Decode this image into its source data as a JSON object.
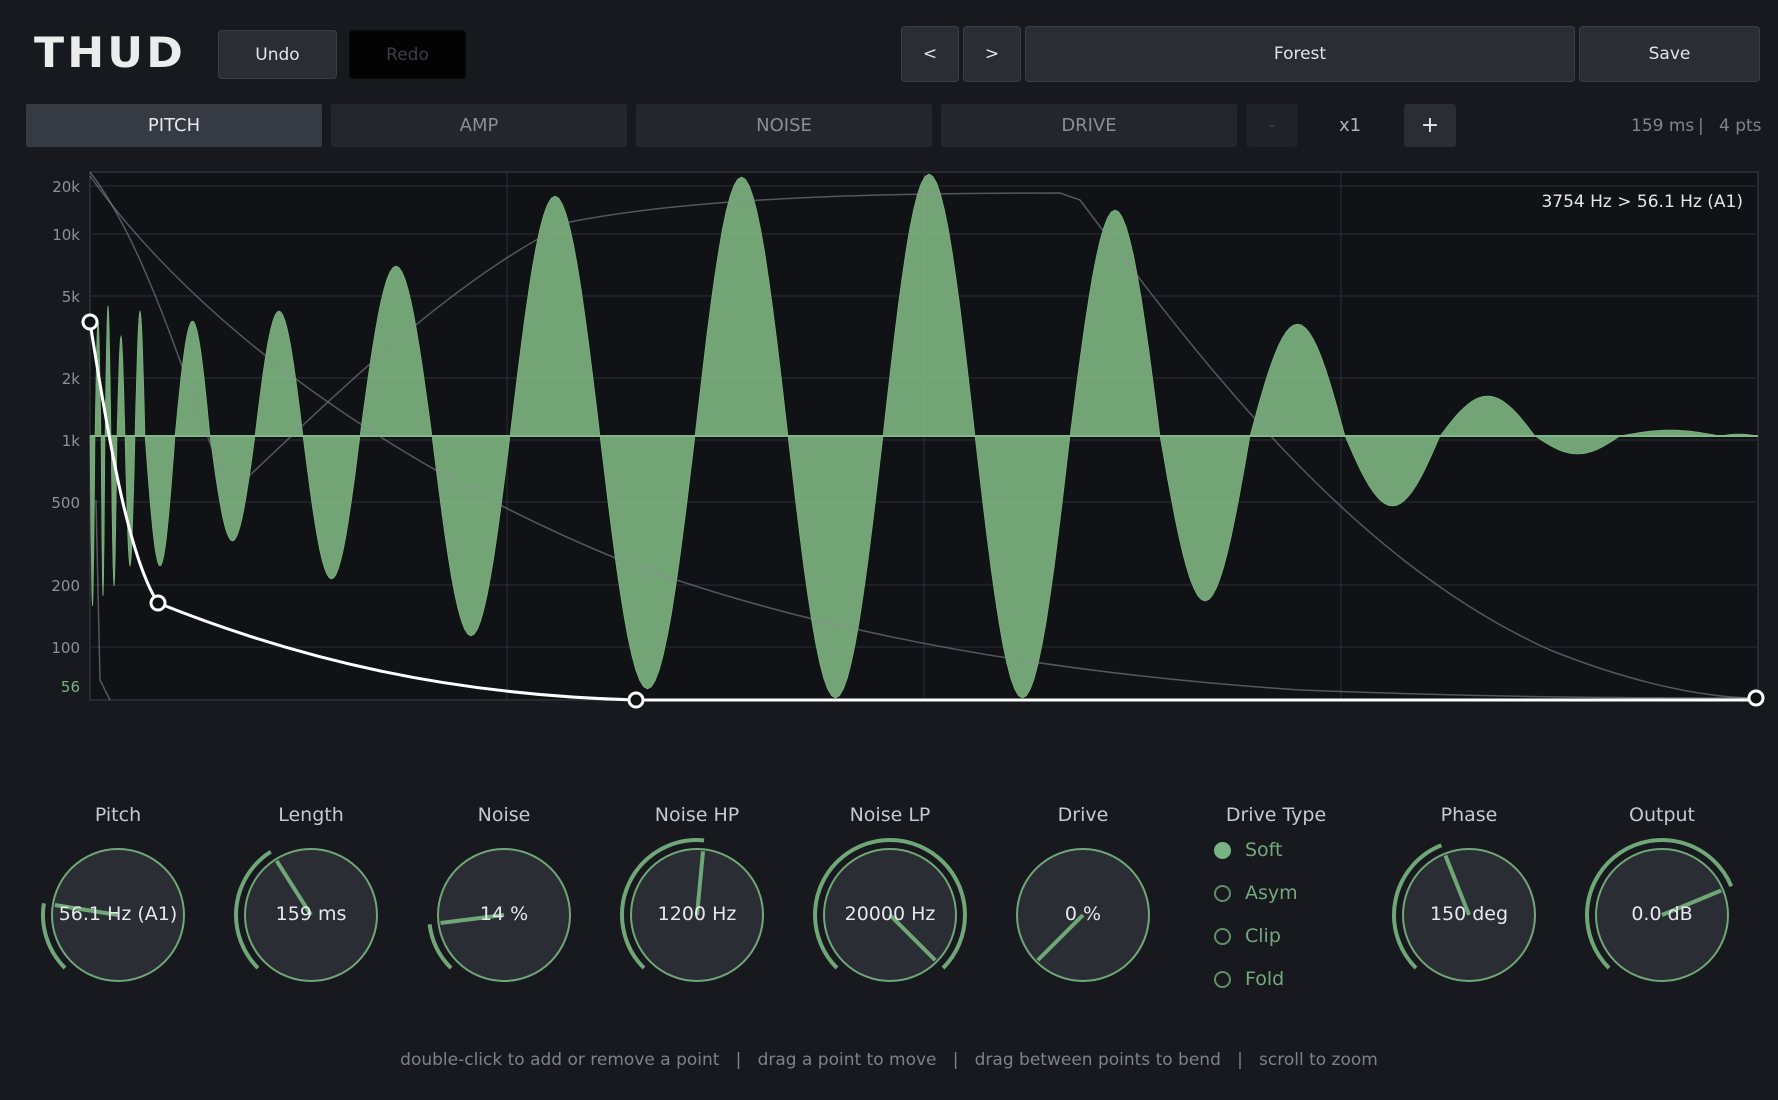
{
  "app": {
    "title": "THUD"
  },
  "toolbar": {
    "undo": "Undo",
    "redo": "Redo",
    "prev": "<",
    "next": ">",
    "preset": "Forest",
    "save": "Save"
  },
  "tabs": [
    {
      "label": "PITCH",
      "active": true
    },
    {
      "label": "AMP",
      "active": false
    },
    {
      "label": "NOISE",
      "active": false
    },
    {
      "label": "DRIVE",
      "active": false
    }
  ],
  "zoom": {
    "minus": "-",
    "value": "x1",
    "plus": "+"
  },
  "envelope_info": {
    "length": "159 ms",
    "separator": "|",
    "points": "4 pts"
  },
  "graph": {
    "readout": "3754 Hz  >  56.1 Hz (A1)",
    "y_ticks": [
      "20k",
      "10k",
      "5k",
      "2k",
      "1k",
      "500",
      "200",
      "100",
      "56"
    ],
    "highlight_tick": "56",
    "colors": {
      "waveform": "#7fb884",
      "envelope": "#ffffff",
      "grid": "#3a3d44",
      "bg": "#111216"
    }
  },
  "knobs": [
    {
      "label": "Pitch",
      "value": "56.1 Hz (A1)",
      "fraction": 0.2
    },
    {
      "label": "Length",
      "value": "159 ms",
      "fraction": 0.38
    },
    {
      "label": "Noise",
      "value": "14 %",
      "fraction": 0.14
    },
    {
      "label": "Noise HP",
      "value": "1200 Hz",
      "fraction": 0.52
    },
    {
      "label": "Noise LP",
      "value": "20000 Hz",
      "fraction": 1.0
    },
    {
      "label": "Drive",
      "value": "0 %",
      "fraction": 0.0
    },
    {
      "label": "Phase",
      "value": "150 deg",
      "fraction": 0.42
    },
    {
      "label": "Output",
      "value": "0.0 dB",
      "fraction": 0.75
    }
  ],
  "drive_type": {
    "label": "Drive Type",
    "options": [
      {
        "label": "Soft",
        "selected": true
      },
      {
        "label": "Asym",
        "selected": false
      },
      {
        "label": "Clip",
        "selected": false
      },
      {
        "label": "Fold",
        "selected": false
      }
    ]
  },
  "help": {
    "text": "double-click to add or remove a point   |   drag a point to move   |   drag between points to bend   |   scroll to zoom"
  }
}
